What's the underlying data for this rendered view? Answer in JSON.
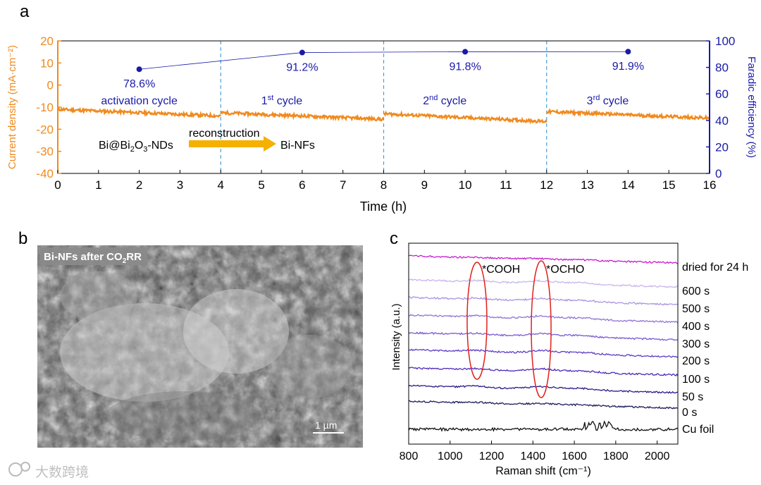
{
  "panel_labels": {
    "a": "a",
    "b": "b",
    "c": "c"
  },
  "watermark": "大数跨境",
  "chart_data": [
    {
      "type": "line",
      "panel": "a",
      "xlabel": "Time (h)",
      "ylabel_left": "Current density (mA·cm⁻²)",
      "ylabel_right": "Faradic efficiency (%)",
      "xlim": [
        0,
        16
      ],
      "ylim_left": [
        -40,
        20
      ],
      "ylim_right": [
        0,
        100
      ],
      "xticks": [
        0,
        1,
        2,
        3,
        4,
        5,
        6,
        7,
        8,
        9,
        10,
        11,
        12,
        13,
        14,
        15,
        16
      ],
      "yticks_left": [
        -40,
        -30,
        -20,
        -10,
        0,
        10,
        20
      ],
      "yticks_right": [
        0,
        20,
        40,
        60,
        80,
        100
      ],
      "colors": {
        "current": "#f08a1e",
        "fe": "#1a1aa8",
        "divider": "#4a9fd8",
        "arrow": "#f5b000"
      },
      "cycle_boundaries": [
        4,
        8,
        12
      ],
      "cycle_labels": [
        {
          "x": 2,
          "main": "activation cycle",
          "sup": ""
        },
        {
          "x": 5.5,
          "main": "1",
          "sup": "st",
          "rest": " cycle"
        },
        {
          "x": 9.5,
          "main": "2",
          "sup": "nd",
          "rest": " cycle"
        },
        {
          "x": 13.5,
          "main": "3",
          "sup": "rd",
          "rest": " cycle"
        }
      ],
      "current_series": {
        "name": "Current density",
        "segments": [
          {
            "x": [
              0,
              4
            ],
            "y": [
              -11,
              -14
            ]
          },
          {
            "x": [
              4,
              8
            ],
            "y": [
              -12.5,
              -15.5
            ]
          },
          {
            "x": [
              8,
              12
            ],
            "y": [
              -13,
              -16.5
            ]
          },
          {
            "x": [
              12,
              16
            ],
            "y": [
              -12,
              -15
            ]
          }
        ]
      },
      "fe_series": {
        "name": "Faradic efficiency",
        "x": [
          2,
          6,
          10,
          14
        ],
        "y": [
          78.6,
          91.2,
          91.8,
          91.9
        ],
        "labels": [
          "78.6%",
          "91.2%",
          "91.8%",
          "91.9%"
        ]
      },
      "annotation": {
        "from_prefix": "Bi@Bi",
        "from_sub1": "2",
        "from_mid": "O",
        "from_sub2": "3",
        "from_suffix": "-NDs",
        "arrow_label": "reconstruction",
        "to": "Bi-NFs"
      }
    },
    {
      "type": "line",
      "panel": "c",
      "xlabel": "Raman shift (cm⁻¹)",
      "ylabel": "Intensity (a.u.)",
      "xlim": [
        800,
        2100
      ],
      "xticks": [
        800,
        1000,
        1200,
        1400,
        1600,
        1800,
        2000
      ],
      "annotations": [
        {
          "label": "*COOH",
          "x": 1130
        },
        {
          "label": "*OCHO",
          "x": 1440
        }
      ],
      "series": [
        {
          "name": "dried for 24 h",
          "color": "#c51bd0"
        },
        {
          "name": "600 s",
          "color": "#c8b6ea"
        },
        {
          "name": "500 s",
          "color": "#a994e0"
        },
        {
          "name": "400 s",
          "color": "#8f74d8"
        },
        {
          "name": "300 s",
          "color": "#7a5ad2"
        },
        {
          "name": "200 s",
          "color": "#5c3cc6"
        },
        {
          "name": "100 s",
          "color": "#4a2ab8"
        },
        {
          "name": "50 s",
          "color": "#2c1a8a"
        },
        {
          "name": "0 s",
          "color": "#1c1a5a"
        },
        {
          "name": "Cu foil",
          "color": "#111111"
        }
      ]
    }
  ],
  "sem_image": {
    "label_prefix": "Bi-NFs after CO",
    "label_sub": "2",
    "label_suffix": "RR",
    "scale_bar": "1 µm"
  }
}
